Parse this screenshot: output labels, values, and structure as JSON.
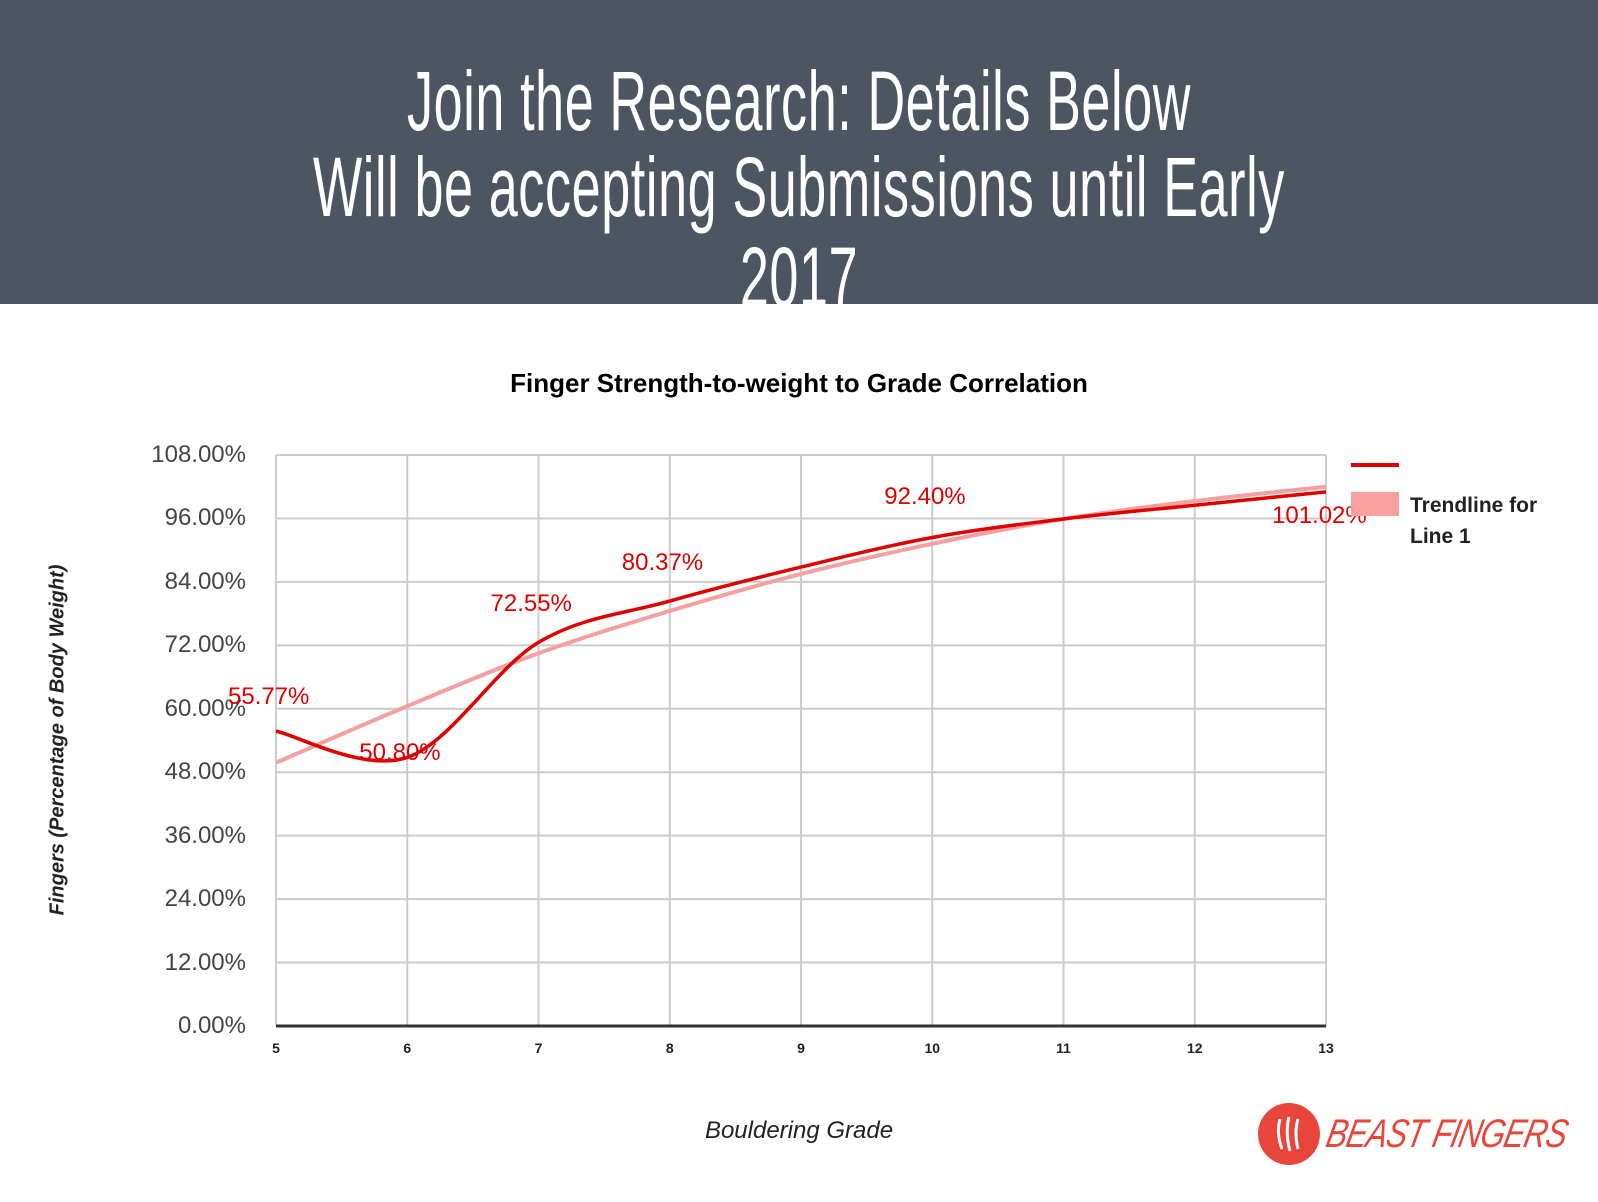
{
  "banner": {
    "line1": "Join the Research: Details Below",
    "line2": "Will be accepting Submissions until Early 2017",
    "background": "#4d5660"
  },
  "chart_data": {
    "type": "line",
    "title": "Finger Strength-to-weight to Grade Correlation",
    "xlabel": "Bouldering Grade",
    "ylabel": "Fingers (Percentage of Body Weight)",
    "x": [
      5,
      6,
      7,
      8,
      9,
      10,
      11,
      12,
      13
    ],
    "x_tick_labels": [
      "5",
      "6",
      "7",
      "8",
      "9",
      "10",
      "11",
      "12",
      "13"
    ],
    "y_tick_labels": [
      "108.00%",
      "96.00%",
      "84.00%",
      "72.00%",
      "60.00%",
      "48.00%",
      "36.00%",
      "24.00%",
      "12.00%",
      "0.00%"
    ],
    "ylim": [
      0,
      108
    ],
    "xlim": [
      5,
      13
    ],
    "grid": true,
    "legend_position": "right",
    "series": [
      {
        "name": "",
        "color": "#e00000",
        "smooth": true,
        "values": [
          55.77,
          50.8,
          72.55,
          80.37,
          86.8,
          92.4,
          95.9,
          98.5,
          101.02
        ]
      },
      {
        "name": "Trendline for Line 1",
        "color": "#f8a0a0",
        "type": "logarithmic-trend",
        "values": [
          49.8,
          60.5,
          70.5,
          78.5,
          85.5,
          91.2,
          95.9,
          99.3,
          102.0
        ]
      }
    ],
    "data_labels": [
      {
        "x": 5,
        "text": "55.77%"
      },
      {
        "x": 6,
        "text": "50.80%"
      },
      {
        "x": 7,
        "text": "72.55%"
      },
      {
        "x": 8,
        "text": "80.37%"
      },
      {
        "x": 10,
        "text": "92.40%"
      },
      {
        "x": 13,
        "text": "101.02%"
      }
    ]
  },
  "legend": {
    "series1_label": "",
    "trendline_label": "Trendline for Line 1"
  },
  "logo": {
    "text": "BEAST FINGERS",
    "color": "#e8463a"
  }
}
